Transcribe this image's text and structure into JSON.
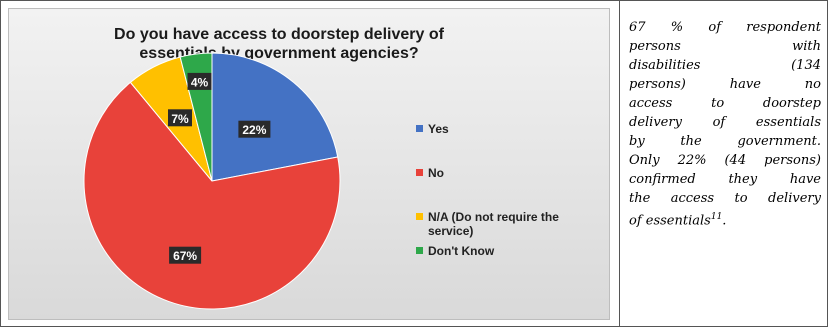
{
  "chart_data": {
    "type": "pie",
    "title": "Do you have access to doorstep delivery of essentials by government agencies?",
    "title_lines": [
      "Do you have access to doorstep delivery of",
      "essentials by government agencies?"
    ],
    "categories": [
      "Yes",
      "No",
      "N/A (Do not require the service)",
      "Don't Know"
    ],
    "values": [
      22,
      67,
      7,
      4
    ],
    "data_labels": [
      "22%",
      "67%",
      "7%",
      "4%"
    ],
    "colors": [
      "#4472C4",
      "#E8423A",
      "#FFC000",
      "#2EA84A"
    ],
    "legend_placement": "right"
  },
  "legend": {
    "items": [
      {
        "label_lines": [
          "Yes"
        ],
        "color": "#4472C4"
      },
      {
        "label_lines": [
          "No"
        ],
        "color": "#E8423A"
      },
      {
        "label_lines": [
          "N/A (Do not require the",
          "service)"
        ],
        "color": "#FFC000"
      },
      {
        "label_lines": [
          "Don't Know"
        ],
        "color": "#2EA84A"
      }
    ]
  },
  "description": {
    "lines": [
      "67 % of respondent",
      "persons with",
      "disabilities (134",
      "persons) have no",
      "access to doorstep",
      "delivery of essentials",
      "by the government.",
      "Only 22% (44 persons)",
      "confirmed they have",
      "the access to delivery",
      "of essentials"
    ],
    "footnote": "11",
    "end": "."
  }
}
